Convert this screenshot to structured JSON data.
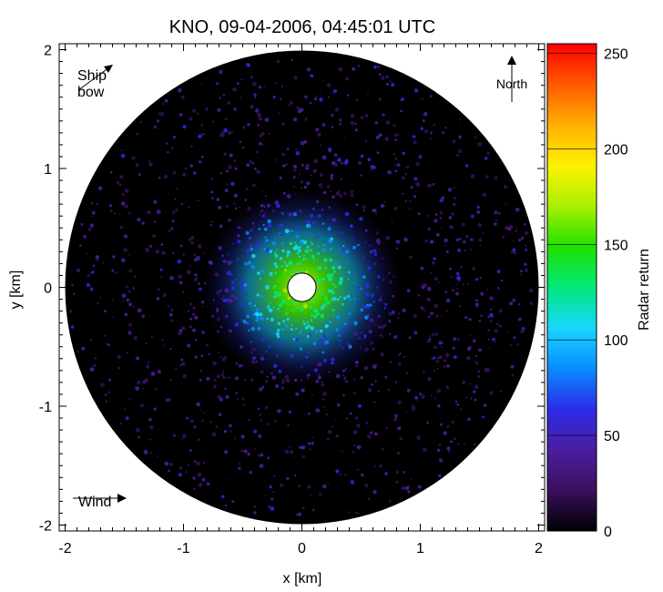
{
  "chart_data": {
    "type": "heatmap",
    "title": "KNO, 09-04-2006, 04:45:01 UTC",
    "xlabel": "x [km]",
    "ylabel": "y [km]",
    "xlim": [
      -2.05,
      2.05
    ],
    "ylim": [
      -2.05,
      2.05
    ],
    "x_ticks": [
      "-2",
      "-1",
      "0",
      "1",
      "2"
    ],
    "x_tick_values": [
      -2,
      -1,
      0,
      1,
      2
    ],
    "y_ticks": [
      "-2",
      "-1",
      "0",
      "1",
      "2"
    ],
    "y_tick_values": [
      -2,
      -1,
      0,
      1,
      2
    ],
    "radar_range_km": 2.0,
    "blind_zone_radius_km": 0.12,
    "colorbar": {
      "label": "Radar return",
      "range": [
        0,
        255
      ],
      "ticks": [
        "0",
        "50",
        "100",
        "150",
        "200",
        "250"
      ],
      "tick_values": [
        0,
        50,
        100,
        150,
        200,
        250
      ],
      "colormap": [
        "#000000",
        "#3a0f5c",
        "#4b1ea0",
        "#2a2ce8",
        "#0a8cff",
        "#18d6ff",
        "#00e87a",
        "#20e000",
        "#a8f000",
        "#fff200",
        "#ffb000",
        "#ff5a00",
        "#ff0000"
      ]
    },
    "annotations": {
      "ship_bow": "Ship\nbow",
      "north": "North",
      "wind": "Wind"
    },
    "grid": false
  }
}
